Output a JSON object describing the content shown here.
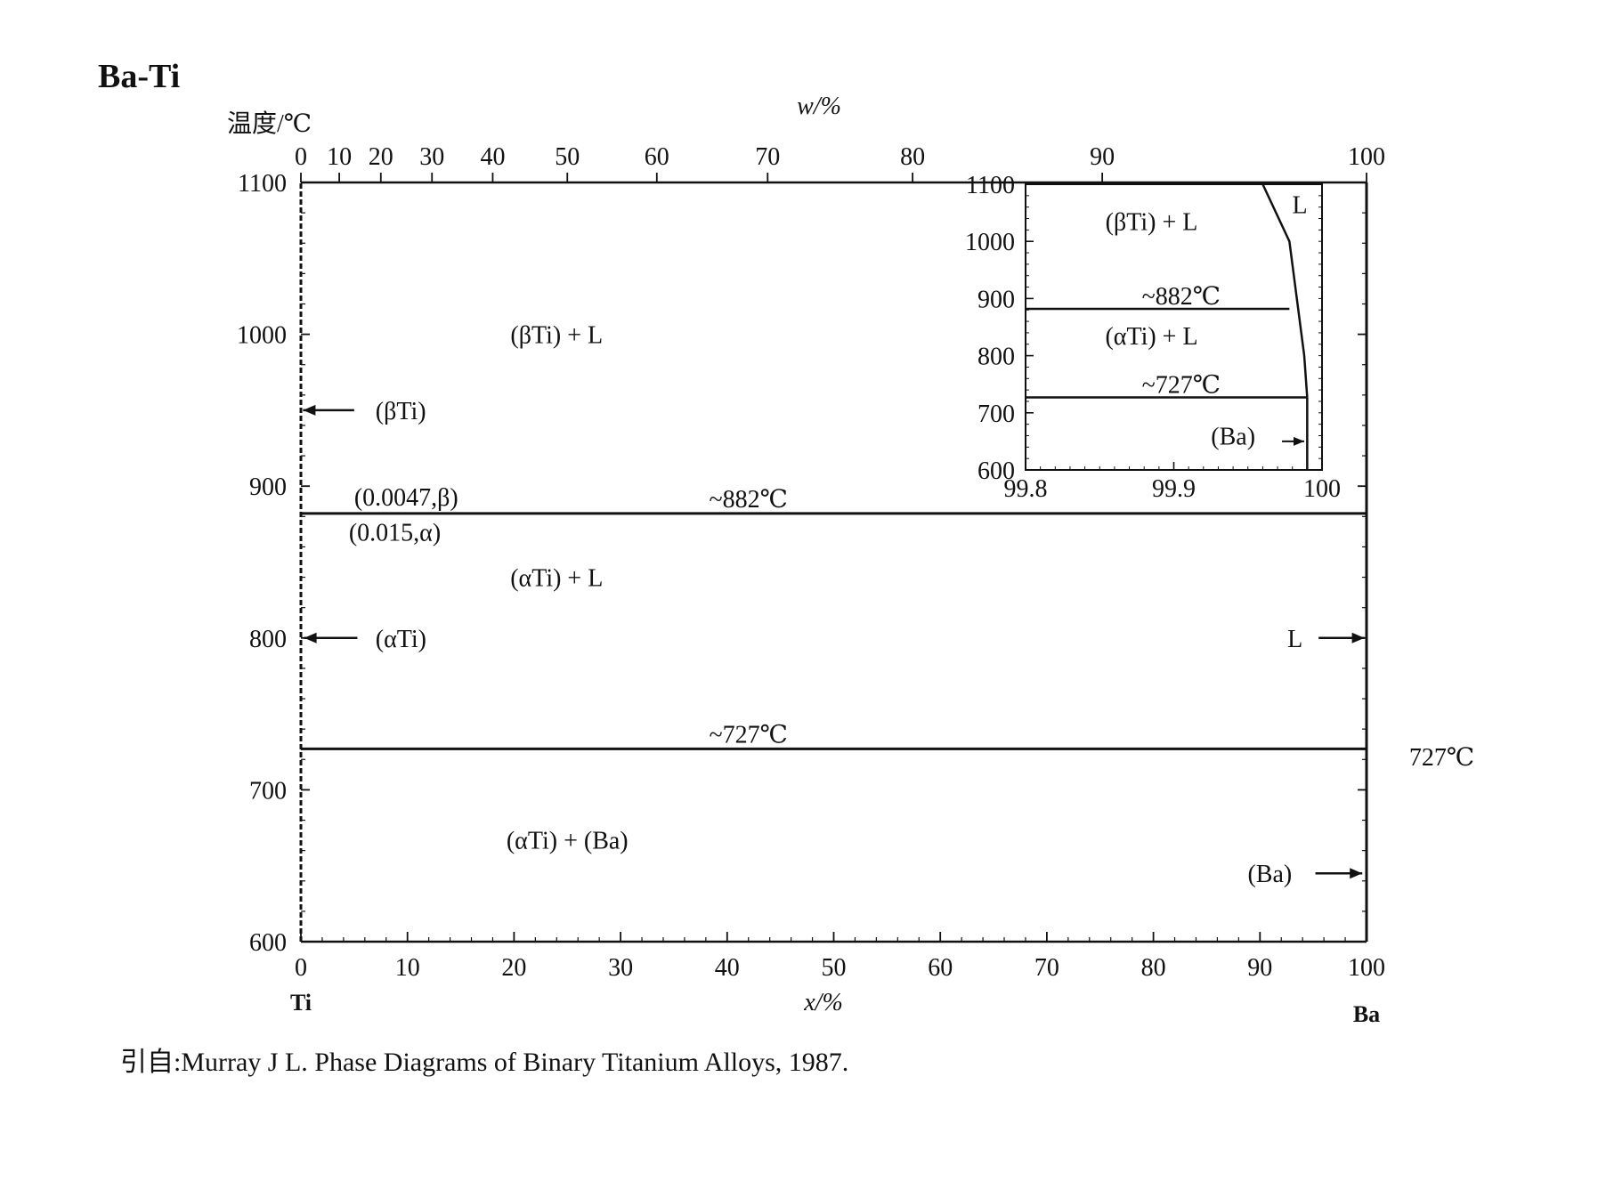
{
  "title": "Ba-Ti",
  "citation": "引自:Murray J L.  Phase Diagrams of Binary Titanium Alloys, 1987.",
  "chart_data": {
    "type": "line",
    "ylabel": "温度/℃",
    "xlabel_bottom": "x/%",
    "xlabel_top": "w/%",
    "xlim": [
      0,
      100
    ],
    "ylim": [
      600,
      1100
    ],
    "x_ticks_bottom": [
      0,
      10,
      20,
      30,
      40,
      50,
      60,
      70,
      80,
      90,
      100
    ],
    "x_ticks_top": [
      0,
      10,
      20,
      30,
      40,
      50,
      60,
      70,
      80,
      90,
      100
    ],
    "x_ticks_top_at_x": [
      0,
      3.6,
      7.5,
      12.3,
      18.0,
      25.0,
      33.4,
      43.8,
      57.4,
      75.2,
      100
    ],
    "y_ticks": [
      600,
      700,
      800,
      900,
      1000,
      1100
    ],
    "end_labels": {
      "left": "Ti",
      "right": "Ba"
    },
    "series": [
      {
        "points": [
          [
            0,
            882
          ],
          [
            100,
            882
          ]
        ]
      },
      {
        "points": [
          [
            0,
            727
          ],
          [
            100,
            727
          ]
        ]
      },
      {
        "points": [
          [
            0,
            600
          ],
          [
            0,
            1100
          ]
        ]
      },
      {
        "points": [
          [
            100,
            600
          ],
          [
            100,
            1100
          ]
        ]
      }
    ],
    "annotations": [
      {
        "text": "(βTi) + L",
        "x": 24,
        "y": 1000
      },
      {
        "text": "(αTi) + L",
        "x": 24,
        "y": 840
      },
      {
        "text": "(αTi) + (Ba)",
        "x": 25,
        "y": 667
      },
      {
        "text": "~882℃",
        "x": 42,
        "y": 892
      },
      {
        "text": "~727℃",
        "x": 42,
        "y": 737
      },
      {
        "text": "(βTi)",
        "x": 7,
        "y": 950
      },
      {
        "text": "(αTi)",
        "x": 7,
        "y": 800
      },
      {
        "text": "(0.0047,β)",
        "x": 5,
        "y": 893
      },
      {
        "text": "(0.015,α)",
        "x": 4.5,
        "y": 870
      },
      {
        "text": "L",
        "x": 94,
        "y": 800
      },
      {
        "text": "(Ba)",
        "x": 93,
        "y": 645
      },
      {
        "text": "727℃",
        "x": 104,
        "y": 722
      }
    ],
    "inset": {
      "type": "line",
      "xlim": [
        99.8,
        100
      ],
      "ylim": [
        600,
        1100
      ],
      "x_ticks": [
        99.8,
        99.9,
        100
      ],
      "x_tick_labels": [
        "99.8",
        "99.9",
        "100"
      ],
      "y_ticks": [
        600,
        700,
        800,
        900,
        1000,
        1100
      ],
      "series": [
        {
          "points": [
            [
              99.8,
              882
            ],
            [
              99.978,
              882
            ]
          ]
        },
        {
          "points": [
            [
              99.8,
              727
            ],
            [
              99.99,
              727
            ]
          ]
        },
        {
          "points": [
            [
              99.96,
              1100
            ],
            [
              99.978,
              1000
            ],
            [
              99.983,
              900
            ],
            [
              99.988,
              800
            ],
            [
              99.99,
              727
            ]
          ]
        },
        {
          "points": [
            [
              99.99,
              727
            ],
            [
              99.99,
              600
            ]
          ]
        }
      ],
      "annotations": [
        {
          "text": "(βTi) + L",
          "x": 99.885,
          "y": 1035
        },
        {
          "text": "~882℃",
          "x": 99.905,
          "y": 905
        },
        {
          "text": "(αTi) + L",
          "x": 99.885,
          "y": 835
        },
        {
          "text": "~727℃",
          "x": 99.905,
          "y": 750
        },
        {
          "text": "L",
          "x": 99.985,
          "y": 1065
        },
        {
          "text": "(Ba)",
          "x": 99.955,
          "y": 660
        }
      ]
    }
  }
}
